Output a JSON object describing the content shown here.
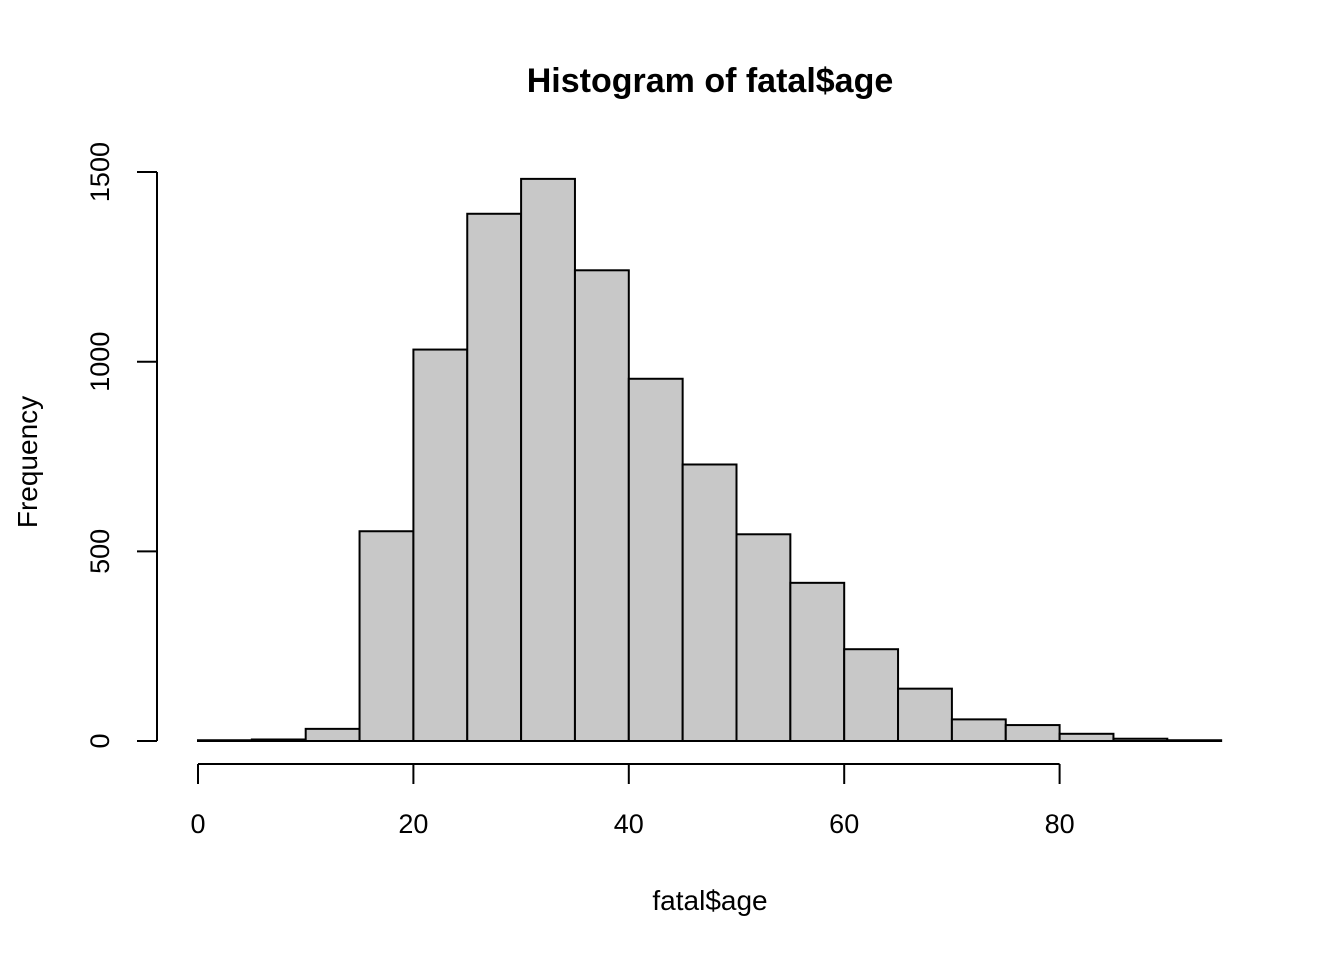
{
  "chart_data": {
    "type": "bar",
    "title": "Histogram of fatal$age",
    "xlabel": "fatal$age",
    "ylabel": "Frequency",
    "bin_edges": [
      0,
      5,
      10,
      15,
      20,
      25,
      30,
      35,
      40,
      45,
      50,
      55,
      60,
      65,
      70,
      75,
      80,
      85,
      90,
      95
    ],
    "values": [
      2,
      4,
      32,
      553,
      1032,
      1390,
      1482,
      1241,
      955,
      729,
      545,
      417,
      242,
      138,
      57,
      42,
      19,
      6,
      2
    ],
    "xticks": [
      0,
      20,
      40,
      60,
      80
    ],
    "yticks": [
      0,
      500,
      1000,
      1500
    ],
    "xlim": [
      0,
      95
    ],
    "ylim": [
      0,
      1500
    ],
    "bar_color": "#C8C8C8",
    "edge_color": "#000000",
    "grid": false,
    "legend": "none"
  }
}
